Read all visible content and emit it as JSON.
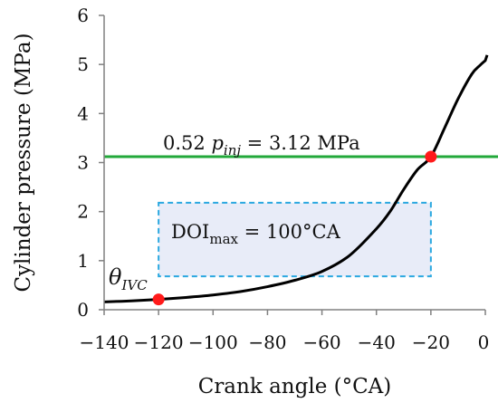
{
  "chart_data": {
    "type": "line",
    "xlabel": "Crank angle (°CA)",
    "ylabel": "Cylinder pressure (MPa)",
    "xlim": [
      -140,
      0
    ],
    "ylim": [
      0,
      6
    ],
    "x_ticks": [
      -140,
      -120,
      -100,
      -80,
      -60,
      -40,
      -20,
      0
    ],
    "y_ticks": [
      0,
      1,
      2,
      3,
      4,
      5,
      6
    ],
    "x_tick_labels": [
      "−140",
      "−120",
      "−100",
      "−80",
      "−60",
      "−40",
      "−20",
      "0"
    ],
    "y_tick_labels": [
      "0",
      "1",
      "2",
      "3",
      "4",
      "5",
      "6"
    ],
    "grid": false,
    "series": [
      {
        "color": "#000000",
        "x": [
          -140,
          -130,
          -120,
          -110,
          -100,
          -90,
          -80,
          -70,
          -60,
          -50,
          -40,
          -35,
          -30,
          -25,
          -20,
          -15,
          -10,
          -5,
          -2,
          0
        ],
        "y": [
          0.16,
          0.18,
          0.21,
          0.25,
          0.3,
          0.37,
          0.47,
          0.6,
          0.78,
          1.1,
          1.65,
          2.0,
          2.45,
          2.85,
          3.12,
          3.7,
          4.3,
          4.8,
          4.98,
          5.08
        ]
      }
    ],
    "reference_line": {
      "y": 3.12,
      "color": "#22a83a",
      "label_prefix": "0.52 ",
      "label_p": "p",
      "label_sub": "inj",
      "label_suffix": " = 3.12 MPa"
    },
    "points": [
      {
        "x": -120,
        "y": 0.21,
        "color": "#ff1a1a"
      },
      {
        "x": -20,
        "y": 3.12,
        "color": "#ff1a1a"
      }
    ],
    "ivc_label": {
      "theta": "θ",
      "sub": "IVC"
    },
    "doi_box": {
      "x_start": -120,
      "x_end": -20,
      "y_bottom": 0.68,
      "y_top": 2.18,
      "border_color": "#2aa8e0",
      "fill": "#e8ecf8",
      "label_main": "DOI",
      "label_sub": "max",
      "label_rest": " = 100°CA"
    },
    "colors": {
      "axis": "#808080",
      "curve": "#000000",
      "highlight": "#ff1a1a",
      "box_border": "#2aa8e0"
    }
  }
}
